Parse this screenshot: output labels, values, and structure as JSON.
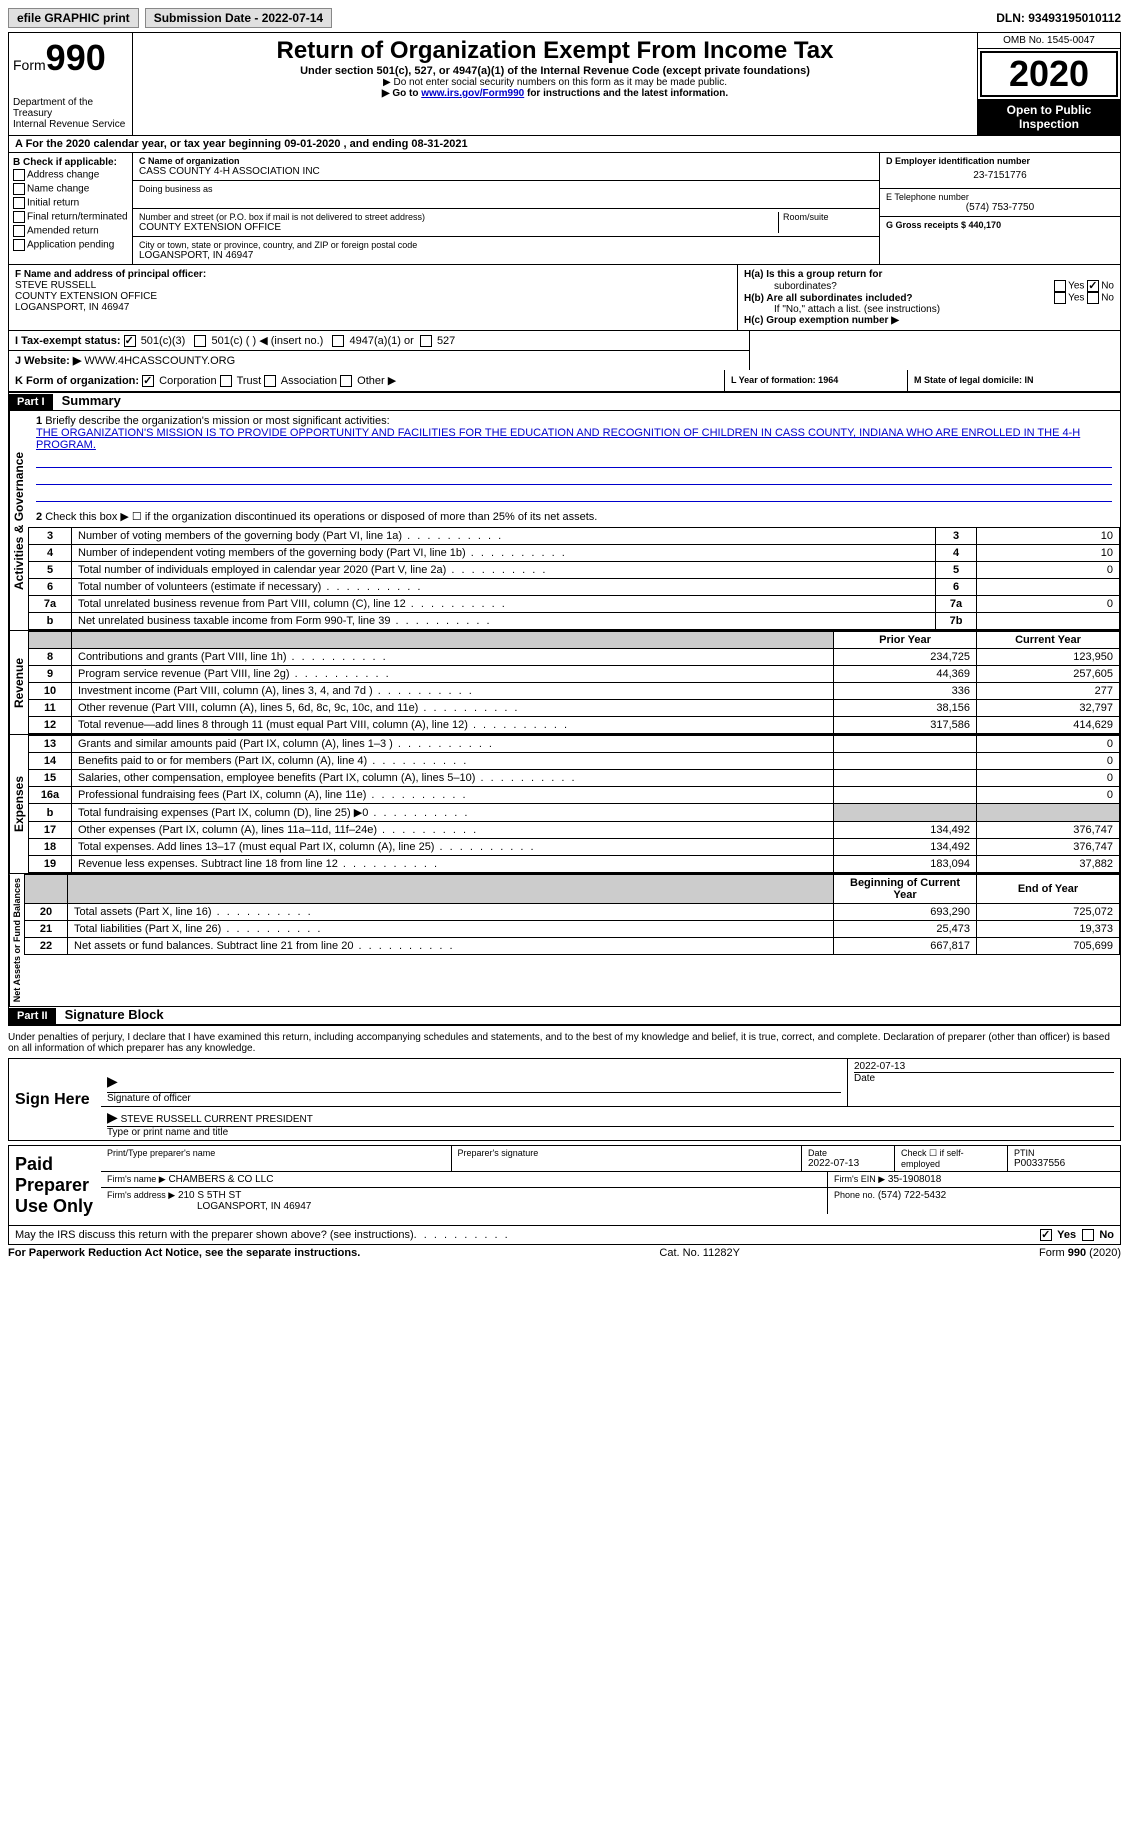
{
  "top": {
    "efile": "efile GRAPHIC print",
    "submission_label": "Submission Date - 2022-07-14",
    "dln": "DLN: 93493195010112"
  },
  "header": {
    "form_word": "Form",
    "form_num": "990",
    "dept": "Department of the Treasury",
    "irs": "Internal Revenue Service",
    "title": "Return of Organization Exempt From Income Tax",
    "subtitle": "Under section 501(c), 527, or 4947(a)(1) of the Internal Revenue Code (except private foundations)",
    "note1": "▶ Do not enter social security numbers on this form as it may be made public.",
    "note2_pre": "▶ Go to ",
    "note2_link": "www.irs.gov/Form990",
    "note2_post": " for instructions and the latest information.",
    "omb": "OMB No. 1545-0047",
    "year": "2020",
    "open": "Open to Public Inspection"
  },
  "period": {
    "text_a": "A For the 2020 calendar year, or tax year beginning 09-01-2020    , and ending 08-31-2021"
  },
  "box_b": {
    "label": "B Check if applicable:",
    "items": [
      "Address change",
      "Name change",
      "Initial return",
      "Final return/terminated",
      "Amended return",
      "Application pending"
    ]
  },
  "box_c": {
    "name_label": "C Name of organization",
    "name": "CASS COUNTY 4-H ASSOCIATION INC",
    "dba_label": "Doing business as",
    "addr_label": "Number and street (or P.O. box if mail is not delivered to street address)",
    "room_label": "Room/suite",
    "addr": "COUNTY EXTENSION OFFICE",
    "city_label": "City or town, state or province, country, and ZIP or foreign postal code",
    "city": "LOGANSPORT, IN  46947"
  },
  "box_d": {
    "label": "D Employer identification number",
    "ein": "23-7151776"
  },
  "box_e": {
    "label": "E Telephone number",
    "phone": "(574) 753-7750"
  },
  "box_g": {
    "label": "G Gross receipts $ 440,170"
  },
  "box_f": {
    "label": "F Name and address of principal officer:",
    "name": "STEVE RUSSELL",
    "addr": "COUNTY EXTENSION OFFICE",
    "city": "LOGANSPORT, IN  46947"
  },
  "box_h": {
    "ha_label": "H(a)  Is this a group return for",
    "ha_sub": "subordinates?",
    "hb_label": "H(b)  Are all subordinates included?",
    "hb_note": "If \"No,\" attach a list. (see instructions)",
    "hc_label": "H(c)  Group exemption number ▶",
    "yes": "Yes",
    "no": "No"
  },
  "line_i": {
    "label": "I    Tax-exempt status:",
    "opt1": "501(c)(3)",
    "opt2": "501(c) (   ) ◀ (insert no.)",
    "opt3": "4947(a)(1) or",
    "opt4": "527"
  },
  "line_j": {
    "label": "J    Website: ▶",
    "value": "WWW.4HCASSCOUNTY.ORG"
  },
  "line_k": {
    "label": "K Form of organization:",
    "opts": [
      "Corporation",
      "Trust",
      "Association",
      "Other ▶"
    ]
  },
  "line_l": {
    "label": "L Year of formation: 1964"
  },
  "line_m": {
    "label": "M State of legal domicile: IN"
  },
  "part1": {
    "num": "Part I",
    "title": "Summary",
    "q1": "Briefly describe the organization's mission or most significant activities:",
    "mission": "THE ORGANIZATION'S MISSION IS TO PROVIDE OPPORTUNITY AND FACILITIES FOR THE EDUCATION AND RECOGNITION OF CHILDREN IN CASS COUNTY, INDIANA WHO ARE ENROLLED IN THE 4-H PROGRAM.",
    "q2": "Check this box ▶ ☐ if the organization discontinued its operations or disposed of more than 25% of its net assets.",
    "vert_ag": "Activities & Governance",
    "vert_rev": "Revenue",
    "vert_exp": "Expenses",
    "vert_na": "Net Assets or Fund Balances",
    "prior": "Prior Year",
    "current": "Current Year",
    "bcy": "Beginning of Current Year",
    "eoy": "End of Year"
  },
  "gov_rows": [
    {
      "n": "3",
      "desc": "Number of voting members of the governing body (Part VI, line 1a)",
      "ln": "3",
      "val": "10"
    },
    {
      "n": "4",
      "desc": "Number of independent voting members of the governing body (Part VI, line 1b)",
      "ln": "4",
      "val": "10"
    },
    {
      "n": "5",
      "desc": "Total number of individuals employed in calendar year 2020 (Part V, line 2a)",
      "ln": "5",
      "val": "0"
    },
    {
      "n": "6",
      "desc": "Total number of volunteers (estimate if necessary)",
      "ln": "6",
      "val": ""
    },
    {
      "n": "7a",
      "desc": "Total unrelated business revenue from Part VIII, column (C), line 12",
      "ln": "7a",
      "val": "0"
    },
    {
      "n": "b",
      "desc": "Net unrelated business taxable income from Form 990-T, line 39",
      "ln": "7b",
      "val": ""
    }
  ],
  "rev_rows": [
    {
      "n": "8",
      "desc": "Contributions and grants (Part VIII, line 1h)",
      "py": "234,725",
      "cy": "123,950"
    },
    {
      "n": "9",
      "desc": "Program service revenue (Part VIII, line 2g)",
      "py": "44,369",
      "cy": "257,605"
    },
    {
      "n": "10",
      "desc": "Investment income (Part VIII, column (A), lines 3, 4, and 7d )",
      "py": "336",
      "cy": "277"
    },
    {
      "n": "11",
      "desc": "Other revenue (Part VIII, column (A), lines 5, 6d, 8c, 9c, 10c, and 11e)",
      "py": "38,156",
      "cy": "32,797"
    },
    {
      "n": "12",
      "desc": "Total revenue—add lines 8 through 11 (must equal Part VIII, column (A), line 12)",
      "py": "317,586",
      "cy": "414,629"
    }
  ],
  "exp_rows": [
    {
      "n": "13",
      "desc": "Grants and similar amounts paid (Part IX, column (A), lines 1–3 )",
      "py": "",
      "cy": "0"
    },
    {
      "n": "14",
      "desc": "Benefits paid to or for members (Part IX, column (A), line 4)",
      "py": "",
      "cy": "0"
    },
    {
      "n": "15",
      "desc": "Salaries, other compensation, employee benefits (Part IX, column (A), lines 5–10)",
      "py": "",
      "cy": "0"
    },
    {
      "n": "16a",
      "desc": "Professional fundraising fees (Part IX, column (A), line 11e)",
      "py": "",
      "cy": "0"
    },
    {
      "n": "b",
      "desc": "Total fundraising expenses (Part IX, column (D), line 25) ▶0",
      "py": "shaded",
      "cy": "shaded"
    },
    {
      "n": "17",
      "desc": "Other expenses (Part IX, column (A), lines 11a–11d, 11f–24e)",
      "py": "134,492",
      "cy": "376,747"
    },
    {
      "n": "18",
      "desc": "Total expenses. Add lines 13–17 (must equal Part IX, column (A), line 25)",
      "py": "134,492",
      "cy": "376,747"
    },
    {
      "n": "19",
      "desc": "Revenue less expenses. Subtract line 18 from line 12",
      "py": "183,094",
      "cy": "37,882"
    }
  ],
  "na_rows": [
    {
      "n": "20",
      "desc": "Total assets (Part X, line 16)",
      "py": "693,290",
      "cy": "725,072"
    },
    {
      "n": "21",
      "desc": "Total liabilities (Part X, line 26)",
      "py": "25,473",
      "cy": "19,373"
    },
    {
      "n": "22",
      "desc": "Net assets or fund balances. Subtract line 21 from line 20",
      "py": "667,817",
      "cy": "705,699"
    }
  ],
  "part2": {
    "num": "Part II",
    "title": "Signature Block",
    "decl": "Under penalties of perjury, I declare that I have examined this return, including accompanying schedules and statements, and to the best of my knowledge and belief, it is true, correct, and complete. Declaration of preparer (other than officer) is based on all information of which preparer has any knowledge."
  },
  "sign": {
    "here": "Sign Here",
    "sig_officer": "Signature of officer",
    "date": "Date",
    "date_val": "2022-07-13",
    "name_title": "STEVE RUSSELL  CURRENT PRESIDENT",
    "type_name": "Type or print name and title"
  },
  "paid": {
    "title": "Paid Preparer Use Only",
    "print_name": "Print/Type preparer's name",
    "prep_sig": "Preparer's signature",
    "date": "Date",
    "date_val": "2022-07-13",
    "check_se": "Check ☐ if self-employed",
    "ptin_label": "PTIN",
    "ptin": "P00337556",
    "firm_name_label": "Firm's name    ▶",
    "firm_name": "CHAMBERS & CO LLC",
    "firm_ein_label": "Firm's EIN ▶",
    "firm_ein": "35-1908018",
    "firm_addr_label": "Firm's address ▶",
    "firm_addr": "210 S 5TH ST",
    "firm_city": "LOGANSPORT, IN  46947",
    "phone_label": "Phone no.",
    "phone": "(574) 722-5432"
  },
  "footer": {
    "discuss": "May the IRS discuss this return with the preparer shown above? (see instructions)",
    "yes": "Yes",
    "no": "No",
    "pra": "For Paperwork Reduction Act Notice, see the separate instructions.",
    "cat": "Cat. No. 11282Y",
    "form": "Form 990 (2020)"
  }
}
